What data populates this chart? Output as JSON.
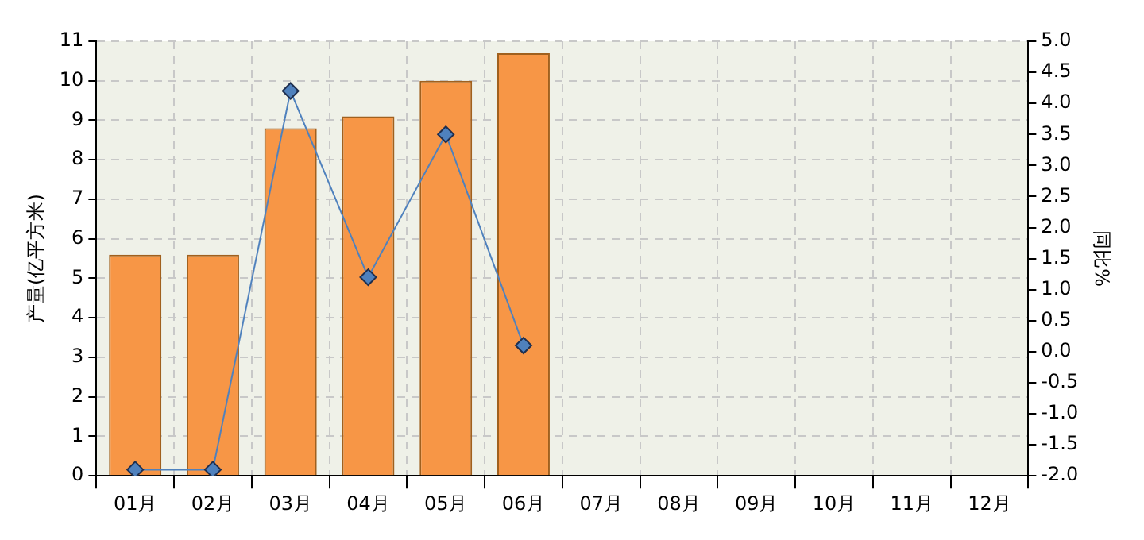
{
  "chart_data": {
    "type": "bar",
    "ylabel": "产量(亿平方米)",
    "y2label": "同比%",
    "categories": [
      "01月",
      "02月",
      "03月",
      "04月",
      "05月",
      "06月",
      "07月",
      "08月",
      "09月",
      "10月",
      "11月",
      "12月"
    ],
    "series": [
      {
        "color": "#f79646",
        "values": [
          5.6,
          5.6,
          8.8,
          9.1,
          10.0,
          10.7,
          null,
          null,
          null,
          null,
          null,
          null
        ]
      },
      {
        "type": "line",
        "axis": "y2",
        "color": "#4f81bd",
        "values": [
          -1.9,
          -1.9,
          4.2,
          1.2,
          3.5,
          0.1,
          null,
          null,
          null,
          null,
          null,
          null
        ]
      }
    ],
    "ylim": [
      0,
      11
    ],
    "yticks": [
      0,
      1,
      2,
      3,
      4,
      5,
      6,
      7,
      8,
      9,
      10,
      11
    ],
    "y2lim": [
      -2,
      5
    ],
    "y2ticks": [
      {
        "value": -2,
        "label": "-2.0"
      },
      {
        "value": -1.5,
        "label": "-1.5"
      },
      {
        "value": -1,
        "label": "-1.0"
      },
      {
        "value": -0.5,
        "label": "-0.5"
      },
      {
        "value": 0,
        "label": "0.0"
      },
      {
        "value": 0.5,
        "label": "0.5"
      },
      {
        "value": 1,
        "label": "1.0"
      },
      {
        "value": 1.5,
        "label": "1.5"
      },
      {
        "value": 2,
        "label": "2.0"
      },
      {
        "value": 2.5,
        "label": "2.5"
      },
      {
        "value": 3,
        "label": "3.0"
      },
      {
        "value": 3.5,
        "label": "3.5"
      },
      {
        "value": 4,
        "label": "4.0"
      },
      {
        "value": 4.5,
        "label": "4.5"
      },
      {
        "value": 5,
        "label": "5.0"
      }
    ],
    "grid": true,
    "legend": false,
    "marker": "diamond",
    "line_style": "solid"
  }
}
